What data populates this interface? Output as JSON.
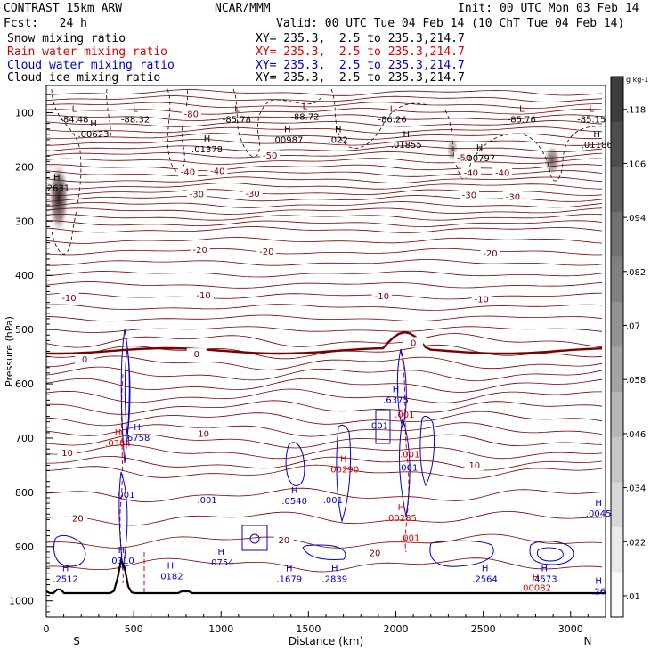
{
  "header": {
    "model": "CONTRAST 15km ARW",
    "center": "NCAR/MMM",
    "init": "Init: 00 UTC Mon 03 Feb 14",
    "fcst": "Fcst:   24 h",
    "valid": "Valid: 00 UTC Tue 04 Feb 14 (10 ChT Tue 04 Feb 14)"
  },
  "legend": [
    {
      "field": "Snow mixing ratio",
      "xy": "XY= 235.3,  2.5 to 235.3,214.7",
      "color": "#000000"
    },
    {
      "field": "Rain water mixing ratio",
      "xy": "XY= 235.3,  2.5 to 235.3,214.7",
      "color": "#dd0000"
    },
    {
      "field": "Cloud water mixing ratio",
      "xy": "XY= 235.3,  2.5 to 235.3,214.7",
      "color": "#0000cc"
    },
    {
      "field": "Cloud ice mixing ratio",
      "xy": "XY= 235.3,  2.5 to 235.3,214.7",
      "color": "#000000"
    }
  ],
  "chart_data": {
    "type": "cross-section contour",
    "xlabel": "Distance (km)",
    "ylabel": "Pressure (hPa)",
    "xlim": [
      0,
      3200
    ],
    "ylim": [
      1030,
      50
    ],
    "x_ticks": [
      0,
      500,
      1000,
      1500,
      2000,
      2500,
      3000
    ],
    "y_ticks": [
      100,
      200,
      300,
      400,
      500,
      600,
      700,
      800,
      900,
      1000
    ],
    "x_ends": {
      "left": "S",
      "right": "N"
    },
    "temperature_contours": [
      {
        "label": "-80",
        "dist": 830,
        "p": 103
      },
      {
        "label": "-50",
        "dist": 1280,
        "p": 180
      },
      {
        "label": "-50",
        "dist": 2390,
        "p": 184
      },
      {
        "label": "-40",
        "dist": 810,
        "p": 210
      },
      {
        "label": "-40",
        "dist": 980,
        "p": 208
      },
      {
        "label": "-40",
        "dist": 2430,
        "p": 212
      },
      {
        "label": "-40",
        "dist": 2610,
        "p": 212
      },
      {
        "label": "-30",
        "dist": 860,
        "p": 251
      },
      {
        "label": "-30",
        "dist": 1180,
        "p": 250
      },
      {
        "label": "-30",
        "dist": 2420,
        "p": 253
      },
      {
        "label": "-30",
        "dist": 2670,
        "p": 256
      },
      {
        "label": "-20",
        "dist": 880,
        "p": 354
      },
      {
        "label": "-20",
        "dist": 1260,
        "p": 357
      },
      {
        "label": "-20",
        "dist": 2540,
        "p": 360
      },
      {
        "label": "-10",
        "dist": 130,
        "p": 442
      },
      {
        "label": "-10",
        "dist": 900,
        "p": 437
      },
      {
        "label": "-10",
        "dist": 1920,
        "p": 439
      },
      {
        "label": "-10",
        "dist": 2490,
        "p": 445
      },
      {
        "label": "0",
        "dist": 220,
        "p": 556
      },
      {
        "label": "0",
        "dist": 860,
        "p": 546
      },
      {
        "label": "0",
        "dist": 2100,
        "p": 525
      },
      {
        "label": "10",
        "dist": 120,
        "p": 728
      },
      {
        "label": "10",
        "dist": 900,
        "p": 693
      },
      {
        "label": "10",
        "dist": 2450,
        "p": 751
      },
      {
        "label": "20",
        "dist": 180,
        "p": 849
      },
      {
        "label": "20",
        "dist": 1360,
        "p": 889
      },
      {
        "label": "20",
        "dist": 1880,
        "p": 913
      }
    ],
    "minima_L": [
      {
        "label": "-84.48",
        "dist": 160,
        "p": 107
      },
      {
        "label": "-88.32",
        "dist": 510,
        "p": 107
      },
      {
        "label": "-85.78",
        "dist": 1090,
        "p": 107
      },
      {
        "label": "-88.72",
        "dist": 1480,
        "p": 102
      },
      {
        "label": "-86.26",
        "dist": 1980,
        "p": 107
      },
      {
        "label": "-85.76",
        "dist": 2720,
        "p": 107
      },
      {
        "label": "-85.15",
        "dist": 3120,
        "p": 107
      }
    ],
    "maxima_H": [
      {
        "value": ".00623",
        "dist": 270,
        "p": 135,
        "series": "cloud_ice"
      },
      {
        "value": ".01378",
        "dist": 920,
        "p": 163,
        "series": "cloud_ice"
      },
      {
        "value": ".00987",
        "dist": 1380,
        "p": 146,
        "series": "cloud_ice"
      },
      {
        "value": ".022",
        "dist": 1670,
        "p": 146,
        "series": "cloud_ice"
      },
      {
        "value": ".01855",
        "dist": 2060,
        "p": 155,
        "series": "cloud_ice"
      },
      {
        "value": ".00797",
        "dist": 2480,
        "p": 180,
        "series": "cloud_ice"
      },
      {
        "value": ".01186",
        "dist": 3150,
        "p": 155,
        "series": "cloud_ice"
      },
      {
        "value": ".2631",
        "dist": 60,
        "p": 235,
        "series": "snow"
      },
      {
        "value": ".0384",
        "dist": 410,
        "p": 705,
        "series": "rain"
      },
      {
        "value": ".00290",
        "dist": 1700,
        "p": 753,
        "series": "rain"
      },
      {
        "value": ".00285",
        "dist": 2030,
        "p": 843,
        "series": "rain"
      },
      {
        "value": ".00082",
        "dist": 2800,
        "p": 972,
        "series": "rain"
      },
      {
        "value": ".6758",
        "dist": 520,
        "p": 695,
        "series": "cloud_water"
      },
      {
        "value": ".6375",
        "dist": 2000,
        "p": 625,
        "series": "cloud_water"
      },
      {
        "value": ".0310",
        "dist": 430,
        "p": 922,
        "series": "cloud_water"
      },
      {
        "value": ".2512",
        "dist": 110,
        "p": 955,
        "series": "cloud_water"
      },
      {
        "value": ".0182",
        "dist": 710,
        "p": 950,
        "series": "cloud_water"
      },
      {
        "value": ".0754",
        "dist": 1000,
        "p": 925,
        "series": "cloud_water"
      },
      {
        "value": ".1679",
        "dist": 1390,
        "p": 955,
        "series": "cloud_water"
      },
      {
        "value": ".2839",
        "dist": 1650,
        "p": 955,
        "series": "cloud_water"
      },
      {
        "value": ".0540",
        "dist": 1420,
        "p": 812,
        "series": "cloud_water"
      },
      {
        "value": ".2564",
        "dist": 2510,
        "p": 955,
        "series": "cloud_water"
      },
      {
        "value": ".4573",
        "dist": 2850,
        "p": 955,
        "series": "cloud_water"
      },
      {
        "value": ".0045",
        "dist": 3160,
        "p": 835,
        "series": "cloud_water"
      },
      {
        "value": ".26",
        "dist": 3160,
        "p": 978,
        "series": "cloud_water"
      }
    ],
    "small_labels": [
      {
        "text": ".001",
        "dist": 450,
        "p": 810,
        "color": "#0000cc"
      },
      {
        "text": ".001",
        "dist": 920,
        "p": 820,
        "color": "#0000cc"
      },
      {
        "text": ".001",
        "dist": 1640,
        "p": 820,
        "color": "#0000cc"
      },
      {
        "text": ".001",
        "dist": 1900,
        "p": 683,
        "color": "#0000cc"
      },
      {
        "text": ".001",
        "dist": 2070,
        "p": 760,
        "color": "#0000cc"
      },
      {
        "text": ".001",
        "dist": 2050,
        "p": 662,
        "color": "#dd0000"
      },
      {
        "text": ".001",
        "dist": 2080,
        "p": 735,
        "color": "#dd0000"
      },
      {
        "text": ".001",
        "dist": 2080,
        "p": 890,
        "color": "#dd0000"
      }
    ],
    "colorbar": {
      "unit": "g kg-1",
      "ticks": [
        ".01",
        ".022",
        ".034",
        ".046",
        ".058",
        ".07",
        ".082",
        ".094",
        ".106",
        ".118"
      ],
      "min": 0.01,
      "max": 0.13
    }
  }
}
